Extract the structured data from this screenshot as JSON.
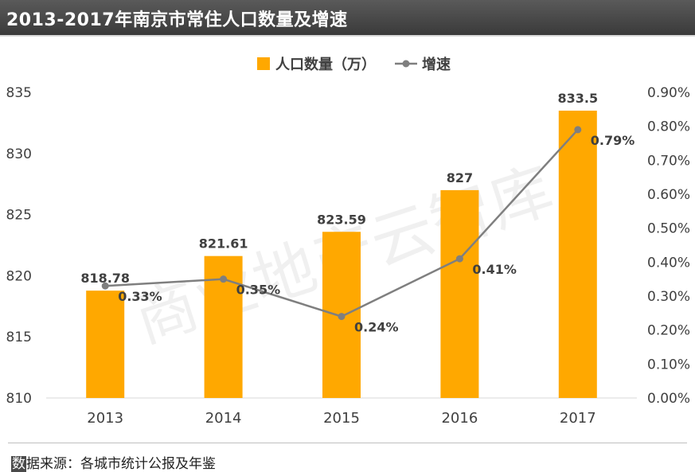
{
  "title": "2013-2017年南京市常住人口数量及增速",
  "source": {
    "first_char": "数",
    "rest": "据来源：各城市统计公报及年鉴"
  },
  "watermark": "商业地产云智库",
  "colors": {
    "bar": "#FFA800",
    "line": "#7F7F7F",
    "title_bg": "#404040",
    "grid": "#D9D9D9"
  },
  "chart_data": {
    "type": "bar",
    "categories": [
      "2013",
      "2014",
      "2015",
      "2016",
      "2017"
    ],
    "series": [
      {
        "name": "人口数量（万）",
        "type": "bar",
        "axis": "left",
        "values": [
          818.78,
          821.61,
          823.59,
          827,
          833.5
        ],
        "labels": [
          "818.78",
          "821.61",
          "823.59",
          "827",
          "833.5"
        ]
      },
      {
        "name": "增速",
        "type": "line",
        "axis": "right",
        "values": [
          0.33,
          0.35,
          0.24,
          0.41,
          0.79
        ],
        "labels": [
          "0.33%",
          "0.35%",
          "0.24%",
          "0.41%",
          "0.79%"
        ]
      }
    ],
    "y_left": {
      "ylim": [
        810,
        835
      ],
      "ticks": [
        "810",
        "815",
        "820",
        "825",
        "830",
        "835"
      ]
    },
    "y_right": {
      "ylim": [
        0,
        0.9
      ],
      "ticks": [
        "0.00%",
        "0.10%",
        "0.20%",
        "0.30%",
        "0.40%",
        "0.50%",
        "0.60%",
        "0.70%",
        "0.80%",
        "0.90%"
      ]
    },
    "legend": "top-center",
    "grid": false
  }
}
